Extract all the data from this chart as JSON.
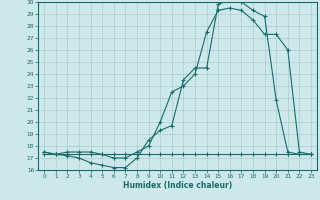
{
  "xlabel": "Humidex (Indice chaleur)",
  "bg_color": "#cce8ea",
  "grid_color": "#aacccc",
  "line_color": "#1a6b6b",
  "xlim": [
    -0.5,
    23.5
  ],
  "ylim": [
    16,
    30
  ],
  "xticks": [
    0,
    1,
    2,
    3,
    4,
    5,
    6,
    7,
    8,
    9,
    10,
    11,
    12,
    13,
    14,
    15,
    16,
    17,
    18,
    19,
    20,
    21,
    22,
    23
  ],
  "yticks": [
    16,
    17,
    18,
    19,
    20,
    21,
    22,
    23,
    24,
    25,
    26,
    27,
    28,
    29,
    30
  ],
  "line1_x": [
    0,
    1,
    2,
    3,
    4,
    5,
    6,
    7,
    8,
    9,
    10,
    11,
    12,
    13,
    14,
    15,
    16,
    17,
    18,
    19,
    20,
    21,
    22,
    23
  ],
  "line1_y": [
    17.3,
    17.3,
    17.3,
    17.3,
    17.3,
    17.3,
    17.3,
    17.3,
    17.3,
    17.3,
    17.3,
    17.3,
    17.3,
    17.3,
    17.3,
    17.3,
    17.3,
    17.3,
    17.3,
    17.3,
    17.3,
    17.3,
    17.3,
    17.3
  ],
  "line2_x": [
    0,
    1,
    2,
    3,
    4,
    5,
    6,
    7,
    8,
    9,
    10,
    11,
    12,
    13,
    14,
    15,
    16,
    17,
    18,
    19,
    20,
    21,
    22,
    23
  ],
  "line2_y": [
    17.5,
    17.3,
    17.2,
    17.0,
    16.6,
    16.4,
    16.2,
    16.2,
    17.0,
    18.5,
    19.3,
    19.7,
    23.5,
    24.5,
    24.5,
    29.8,
    30.2,
    30.0,
    29.3,
    28.8,
    21.8,
    17.5,
    17.3,
    17.3
  ],
  "line3_x": [
    0,
    1,
    2,
    3,
    4,
    5,
    6,
    7,
    8,
    9,
    10,
    11,
    12,
    13,
    14,
    15,
    16,
    17,
    18,
    19,
    20,
    21,
    22,
    23
  ],
  "line3_y": [
    17.5,
    17.3,
    17.5,
    17.5,
    17.5,
    17.3,
    17.0,
    17.0,
    17.5,
    18.0,
    20.0,
    22.5,
    23.0,
    24.0,
    27.5,
    29.3,
    29.5,
    29.3,
    28.5,
    27.3,
    27.3,
    26.0,
    17.5,
    17.3
  ]
}
